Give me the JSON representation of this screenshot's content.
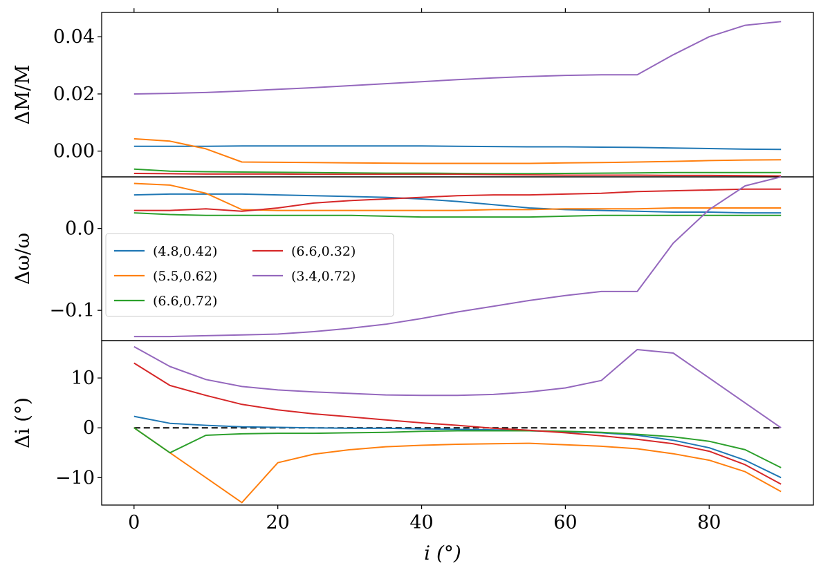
{
  "chart_data": {
    "type": "line",
    "shared_x": {
      "label": "i (°)",
      "ticks": [
        0,
        20,
        40,
        60,
        80
      ],
      "xlim": [
        -4.5,
        94.5
      ],
      "values": [
        0,
        5,
        10,
        15,
        20,
        25,
        30,
        35,
        40,
        45,
        50,
        55,
        60,
        65,
        70,
        75,
        80,
        85,
        90
      ]
    },
    "legend": {
      "entries": [
        "(4.8,0.42)",
        "(5.5,0.62)",
        "(6.6,0.72)",
        "(6.6,0.32)",
        "(3.4,0.72)"
      ],
      "colors": [
        "#1f77b4",
        "#ff7f0e",
        "#2ca02c",
        "#d62728",
        "#9467bd"
      ],
      "panel": "middle",
      "placement": "center-left"
    },
    "panels": [
      {
        "ylabel": "ΔM/M",
        "ylim": [
          -0.009,
          0.0485
        ],
        "yticks": [
          0.0,
          0.02,
          0.04
        ],
        "ytick_labels": [
          "0.00",
          "0.02",
          "0.04"
        ],
        "series": [
          {
            "name": "(4.8,0.42)",
            "values": [
              0.0017,
              0.0017,
              0.0017,
              0.0018,
              0.0018,
              0.0018,
              0.0018,
              0.0018,
              0.0018,
              0.0017,
              0.0016,
              0.0015,
              0.0015,
              0.0014,
              0.0013,
              0.0011,
              0.0009,
              0.0007,
              0.0006
            ]
          },
          {
            "name": "(5.5,0.62)",
            "values": [
              0.0043,
              0.0035,
              0.0008,
              -0.0038,
              -0.0039,
              -0.004,
              -0.0041,
              -0.0042,
              -0.0043,
              -0.0043,
              -0.0043,
              -0.0043,
              -0.0041,
              -0.004,
              -0.0038,
              -0.0036,
              -0.0033,
              -0.0031,
              -0.003
            ]
          },
          {
            "name": "(6.6,0.72)",
            "values": [
              -0.0063,
              -0.007,
              -0.0072,
              -0.0073,
              -0.0074,
              -0.0075,
              -0.0076,
              -0.0077,
              -0.0077,
              -0.0078,
              -0.0079,
              -0.0079,
              -0.0078,
              -0.0077,
              -0.0076,
              -0.0075,
              -0.0075,
              -0.0075,
              -0.0075
            ]
          },
          {
            "name": "(6.6,0.32)",
            "values": [
              -0.0078,
              -0.0079,
              -0.008,
              -0.008,
              -0.008,
              -0.0081,
              -0.0081,
              -0.0081,
              -0.0081,
              -0.0081,
              -0.0082,
              -0.0083,
              -0.0084,
              -0.0084,
              -0.0084,
              -0.0085,
              -0.0085,
              -0.0086,
              -0.0087
            ]
          },
          {
            "name": "(3.4,0.72)",
            "values": [
              0.02,
              0.0202,
              0.0205,
              0.021,
              0.0216,
              0.0222,
              0.0229,
              0.0236,
              0.0243,
              0.025,
              0.0256,
              0.0261,
              0.0265,
              0.0267,
              0.0267,
              0.0337,
              0.04,
              0.044,
              0.0453
            ]
          }
        ]
      },
      {
        "ylabel": "Δω/ω",
        "ylim": [
          -0.137,
          0.063
        ],
        "yticks": [
          0.0,
          -0.1
        ],
        "ytick_labels": [
          "0.0",
          "−0.1"
        ],
        "series": [
          {
            "name": "(4.8,0.42)",
            "values": [
              0.041,
              0.042,
              0.042,
              0.042,
              0.041,
              0.04,
              0.039,
              0.038,
              0.036,
              0.033,
              0.029,
              0.025,
              0.023,
              0.022,
              0.021,
              0.02,
              0.02,
              0.019,
              0.019
            ]
          },
          {
            "name": "(5.5,0.62)",
            "values": [
              0.055,
              0.053,
              0.043,
              0.023,
              0.022,
              0.022,
              0.022,
              0.022,
              0.022,
              0.022,
              0.023,
              0.023,
              0.024,
              0.024,
              0.024,
              0.025,
              0.025,
              0.025,
              0.025
            ]
          },
          {
            "name": "(6.6,0.72)",
            "values": [
              0.019,
              0.017,
              0.016,
              0.016,
              0.016,
              0.016,
              0.016,
              0.015,
              0.014,
              0.014,
              0.014,
              0.014,
              0.015,
              0.016,
              0.016,
              0.016,
              0.016,
              0.016,
              0.016
            ]
          },
          {
            "name": "(6.6,0.32)",
            "values": [
              0.022,
              0.022,
              0.024,
              0.021,
              0.025,
              0.031,
              0.034,
              0.036,
              0.038,
              0.04,
              0.041,
              0.041,
              0.042,
              0.043,
              0.045,
              0.046,
              0.047,
              0.048,
              0.048
            ]
          },
          {
            "name": "(3.4,0.72)",
            "values": [
              -0.132,
              -0.132,
              -0.131,
              -0.13,
              -0.129,
              -0.126,
              -0.122,
              -0.117,
              -0.11,
              -0.102,
              -0.095,
              -0.088,
              -0.082,
              -0.077,
              -0.077,
              -0.018,
              0.023,
              0.052,
              0.063
            ]
          }
        ]
      },
      {
        "ylabel": "Δi (°)",
        "ylim": [
          -15.5,
          17.5
        ],
        "yticks": [
          10,
          0,
          -10
        ],
        "ytick_labels": [
          "10",
          "0",
          "−10"
        ],
        "reference_line": {
          "y": 0,
          "style": "dashed"
        },
        "series": [
          {
            "name": "(4.8,0.42)",
            "values": [
              2.3,
              0.9,
              0.5,
              0.2,
              0.1,
              0.0,
              -0.1,
              -0.1,
              -0.2,
              -0.3,
              -0.4,
              -0.6,
              -0.8,
              -1.0,
              -1.5,
              -2.5,
              -4.0,
              -6.5,
              -10.0
            ]
          },
          {
            "name": "(5.5,0.62)",
            "values": [
              0.0,
              -5.0,
              -10.0,
              -15.0,
              -7.0,
              -5.3,
              -4.4,
              -3.8,
              -3.5,
              -3.3,
              -3.2,
              -3.1,
              -3.4,
              -3.7,
              -4.2,
              -5.2,
              -6.5,
              -8.8,
              -12.8
            ]
          },
          {
            "name": "(6.6,0.72)",
            "values": [
              0.0,
              -5.0,
              -1.5,
              -1.2,
              -1.1,
              -1.1,
              -1.0,
              -0.9,
              -0.7,
              -0.6,
              -0.6,
              -0.6,
              -0.7,
              -0.9,
              -1.3,
              -1.8,
              -2.7,
              -4.4,
              -8.0
            ]
          },
          {
            "name": "(6.6,0.32)",
            "values": [
              13.0,
              8.5,
              6.5,
              4.7,
              3.6,
              2.8,
              2.2,
              1.6,
              1.0,
              0.5,
              -0.1,
              -0.5,
              -1.0,
              -1.6,
              -2.3,
              -3.2,
              -4.7,
              -7.4,
              -11.3
            ]
          },
          {
            "name": "(3.4,0.72)",
            "values": [
              16.3,
              12.3,
              9.7,
              8.3,
              7.6,
              7.2,
              6.9,
              6.6,
              6.5,
              6.5,
              6.7,
              7.2,
              8.0,
              9.5,
              15.7,
              15.0,
              10.0,
              5.0,
              0.0
            ]
          }
        ]
      }
    ]
  }
}
